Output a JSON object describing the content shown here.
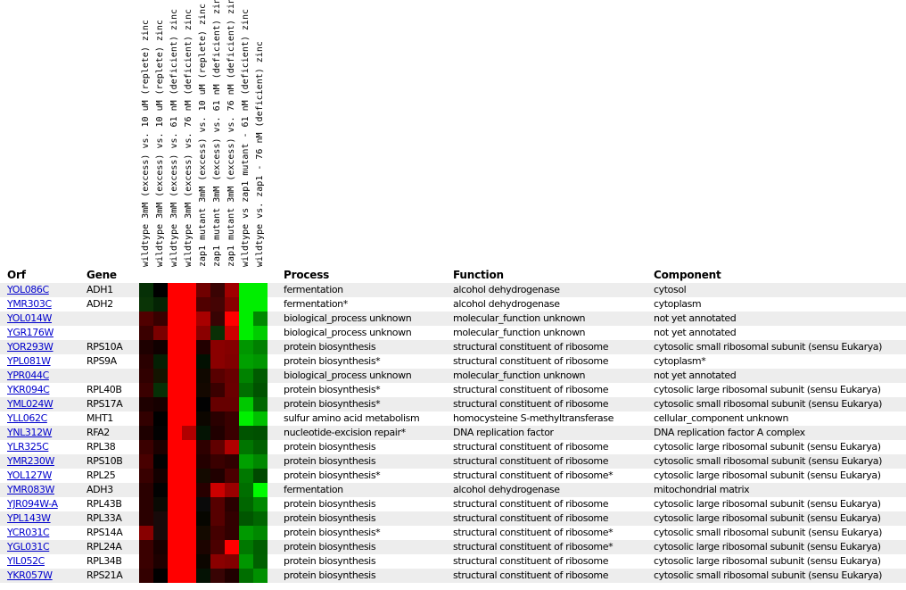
{
  "table": {
    "headers": {
      "orf": "Orf",
      "gene": "Gene",
      "process": "Process",
      "function": "Function",
      "component": "Component"
    },
    "heatmap_column_labels": [
      "wildtype 3mM (excess) vs. 10 uM (replete) zinc",
      "wildtype 3mM (excess) vs. 10 uM (replete) zinc",
      "wildtype 3mM (excess) vs. 61 nM (deficient) zinc",
      "wildtype 3mM (excess) vs. 76 nM (deficient) zinc",
      "zap1 mutant 3mM (excess) vs. 10 uM (replete) zinc",
      "zap1 mutant 3mM (excess) vs. 61 nM (deficient) zinc",
      "zap1 mutant 3mM (excess) vs. 76 nM (deficient) zinc",
      "wildtype vs zap1 mutant - 61 nM (deficient) zinc",
      "wildtype vs. zap1 - 76 nM (deficient) zinc"
    ],
    "rows": [
      {
        "orf": "YOL086C",
        "gene": "ADH1",
        "process": "fermentation",
        "function": "alcohol dehydrogenase",
        "component": "cytosol",
        "heat_colors": [
          "#063006",
          "#000000",
          "#ff0000",
          "#ff0000",
          "#700000",
          "#3a0404",
          "#a00000",
          "#00ee00",
          "#00ee00"
        ]
      },
      {
        "orf": "YMR303C",
        "gene": "ADH2",
        "process": "fermentation*",
        "function": "alcohol dehydrogenase",
        "component": "cytoplasm",
        "heat_colors": [
          "#0a3406",
          "#042404",
          "#ff0000",
          "#ff0000",
          "#500000",
          "#440404",
          "#880000",
          "#00ee00",
          "#00ee00"
        ]
      },
      {
        "orf": "YOL014W",
        "gene": "",
        "process": "biological_process unknown",
        "function": "molecular_function unknown",
        "component": "not yet annotated",
        "heat_colors": [
          "#500000",
          "#380000",
          "#ff0000",
          "#ff0000",
          "#a80000",
          "#380404",
          "#ff0000",
          "#00ee00",
          "#008800"
        ]
      },
      {
        "orf": "YGR176W",
        "gene": "",
        "process": "biological_process unknown",
        "function": "molecular_function unknown",
        "component": "not yet annotated",
        "heat_colors": [
          "#3a0000",
          "#7a0000",
          "#ff0000",
          "#ff0000",
          "#8a0000",
          "#0a3006",
          "#cc0000",
          "#00ee00",
          "#00cc00"
        ]
      },
      {
        "orf": "YOR293W",
        "gene": "RPS10A",
        "process": "protein biosynthesis",
        "function": "structural constituent of ribosome",
        "component": "cytosolic small ribosomal subunit (sensu Eukarya)",
        "heat_colors": [
          "#1e0000",
          "#100000",
          "#ff0000",
          "#ff0000",
          "#220000",
          "#8a0000",
          "#840000",
          "#009600",
          "#008000"
        ]
      },
      {
        "orf": "YPL081W",
        "gene": "RPS9A",
        "process": "protein biosynthesis*",
        "function": "structural constituent of ribosome",
        "component": "cytoplasm*",
        "heat_colors": [
          "#2a0000",
          "#042004",
          "#ff0000",
          "#ff0000",
          "#021002",
          "#8a0000",
          "#800000",
          "#00a000",
          "#009600"
        ]
      },
      {
        "orf": "YPR044C",
        "gene": "",
        "process": "biological_process unknown",
        "function": "molecular_function unknown",
        "component": "not yet annotated",
        "heat_colors": [
          "#300000",
          "#141400",
          "#ff0000",
          "#ff0000",
          "#100800",
          "#580000",
          "#680000",
          "#008200",
          "#005a00"
        ]
      },
      {
        "orf": "YKR094C",
        "gene": "RPL40B",
        "process": "protein biosynthesis*",
        "function": "structural constituent of ribosome",
        "component": "cytosolic large ribosomal subunit (sensu Eukarya)",
        "heat_colors": [
          "#3a0000",
          "#063006",
          "#ff0000",
          "#ff0000",
          "#140800",
          "#3a0000",
          "#6a0000",
          "#006e00",
          "#005200"
        ]
      },
      {
        "orf": "YML024W",
        "gene": "RPS17A",
        "process": "protein biosynthesis*",
        "function": "structural constituent of ribosome",
        "component": "cytosolic small ribosomal subunit (sensu Eukarya)",
        "heat_colors": [
          "#1e0000",
          "#160000",
          "#ff0000",
          "#ff0000",
          "#020202",
          "#660000",
          "#660000",
          "#00c800",
          "#006600"
        ]
      },
      {
        "orf": "YLL062C",
        "gene": "MHT1",
        "process": "sulfur amino acid metabolism",
        "function": "homocysteine S-methyltransferase",
        "component": "cellular_component unknown",
        "heat_colors": [
          "#320000",
          "#000000",
          "#ff0000",
          "#ff0000",
          "#0c0600",
          "#2a0000",
          "#3a0000",
          "#00f000",
          "#00c000"
        ]
      },
      {
        "orf": "YNL312W",
        "gene": "RFA2",
        "process": "nucleotide-excision repair*",
        "function": "DNA replication factor",
        "component": "DNA replication factor A complex",
        "heat_colors": [
          "#1e0000",
          "#020202",
          "#ff0000",
          "#b00000",
          "#041404",
          "#200000",
          "#3a0000",
          "#005400",
          "#005000"
        ]
      },
      {
        "orf": "YLR325C",
        "gene": "RPL38",
        "process": "protein biosynthesis",
        "function": "structural constituent of ribosome",
        "component": "cytosolic large ribosomal subunit (sensu Eukarya)",
        "heat_colors": [
          "#3a0000",
          "#1c0000",
          "#ff0000",
          "#ff0000",
          "#2e0000",
          "#600000",
          "#b00000",
          "#007500",
          "#006000"
        ]
      },
      {
        "orf": "YMR230W",
        "gene": "RPS10B",
        "process": "protein biosynthesis",
        "function": "structural constituent of ribosome",
        "component": "cytosolic small ribosomal subunit (sensu Eukarya)",
        "heat_colors": [
          "#480000",
          "#020202",
          "#ff0000",
          "#ff0000",
          "#240000",
          "#3a0000",
          "#300000",
          "#00a000",
          "#008800"
        ]
      },
      {
        "orf": "YOL127W",
        "gene": "RPL25",
        "process": "protein biosynthesis*",
        "function": "structural constituent of ribosome*",
        "component": "cytosolic large ribosomal subunit (sensu Eukarya)",
        "heat_colors": [
          "#380000",
          "#140000",
          "#ff0000",
          "#ff0000",
          "#140a00",
          "#200000",
          "#4a0000",
          "#007800",
          "#004800"
        ]
      },
      {
        "orf": "YMR083W",
        "gene": "ADH3",
        "process": "fermentation",
        "function": "alcohol dehydrogenase",
        "component": "mitochondrial matrix",
        "heat_colors": [
          "#2a0000",
          "#020202",
          "#ff0000",
          "#ff0000",
          "#280000",
          "#cc0000",
          "#9a0000",
          "#006e00",
          "#00fa00"
        ]
      },
      {
        "orf": "YJR094W-A",
        "gene": "RPL43B",
        "process": "protein biosynthesis",
        "function": "structural constituent of ribosome",
        "component": "cytosolic large ribosomal subunit (sensu Eukarya)",
        "heat_colors": [
          "#2a0000",
          "#0a0a04",
          "#ff0000",
          "#ff0000",
          "#0a0a0a",
          "#560000",
          "#2a0000",
          "#006600",
          "#008800"
        ]
      },
      {
        "orf": "YPL143W",
        "gene": "RPL33A",
        "process": "protein biosynthesis",
        "function": "structural constituent of ribosome",
        "component": "cytosolic large ribosomal subunit (sensu Eukarya)",
        "heat_colors": [
          "#2a0000",
          "#180a0a",
          "#ff0000",
          "#ff0000",
          "#060600",
          "#560000",
          "#320000",
          "#005600",
          "#006600"
        ]
      },
      {
        "orf": "YCR031C",
        "gene": "RPS14A",
        "process": "protein biosynthesis*",
        "function": "structural constituent of ribosome*",
        "component": "cytosolic small ribosomal subunit (sensu Eukarya)",
        "heat_colors": [
          "#880000",
          "#180a0a",
          "#ff0000",
          "#ff0000",
          "#140a00",
          "#440000",
          "#320000",
          "#009900",
          "#008800"
        ]
      },
      {
        "orf": "YGL031C",
        "gene": "RPL24A",
        "process": "protein biosynthesis",
        "function": "structural constituent of ribosome*",
        "component": "cytosolic large ribosomal subunit (sensu Eukarya)",
        "heat_colors": [
          "#3a0000",
          "#180000",
          "#ff0000",
          "#ff0000",
          "#1c0400",
          "#4a0000",
          "#ff0000",
          "#007800",
          "#005e00"
        ]
      },
      {
        "orf": "YIL052C",
        "gene": "RPL34B",
        "process": "protein biosynthesis",
        "function": "structural constituent of ribosome",
        "component": "cytosolic large ribosomal subunit (sensu Eukarya)",
        "heat_colors": [
          "#3a0000",
          "#1e0000",
          "#ff0000",
          "#ff0000",
          "#0c0600",
          "#8a0000",
          "#820000",
          "#009600",
          "#006000"
        ]
      },
      {
        "orf": "YKR057W",
        "gene": "RPS21A",
        "process": "protein biosynthesis",
        "function": "structural constituent of ribosome",
        "component": "cytosolic small ribosomal subunit (sensu Eukarya)",
        "heat_colors": [
          "#330000",
          "#000000",
          "#ff0000",
          "#ff0000",
          "#041204",
          "#380404",
          "#200000",
          "#006e00",
          "#009000"
        ]
      }
    ]
  },
  "colors": {
    "link_blue": "#0000cc",
    "row_stripe_gray": "#ededed",
    "heatmap_up_red": "#ff0000",
    "heatmap_down_green": "#00ee00",
    "heatmap_neutral_black": "#000000"
  }
}
